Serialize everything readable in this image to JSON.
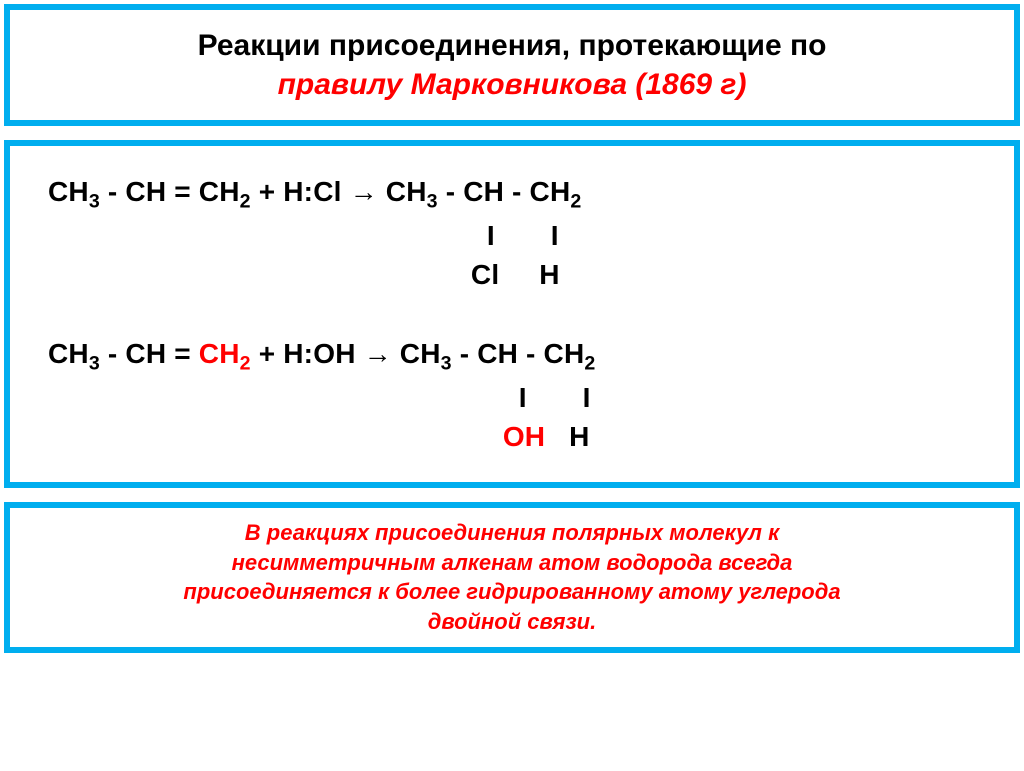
{
  "colors": {
    "frame_border": "#00aeef",
    "text_black": "#000000",
    "text_red": "#ff0000",
    "background": "#ffffff"
  },
  "fonts": {
    "header_size": 30,
    "equation_size": 28,
    "footer_size": 22
  },
  "header": {
    "line1": "Реакции присоединения, протекающие по",
    "line2": "правилу Марковникова (1869 г)"
  },
  "equations": {
    "eq1": {
      "lhs_prefix": "CH",
      "sub3": "3",
      "dash": " - CH = CH",
      "sub2": "2",
      "plus": " + ",
      "hcl": "H:Cl",
      "arrow": " → ",
      "rhs_prefix": "CH",
      "rhs_dash1": " - CH - CH",
      "bonds_pad": "                                                       ",
      "bond": "I       I",
      "subst_pad": "                                                     ",
      "subst": "Cl     H"
    },
    "eq2": {
      "lhs_prefix": "CH",
      "sub3": "3",
      "dash": " - CH = ",
      "ch": "CH",
      "sub2": "2",
      "plus": " + ",
      "hoh": "H:OH",
      "arrow": " → ",
      "rhs_prefix": "CH",
      "rhs_dash1": " - CH - CH",
      "bonds_pad": "                                                           ",
      "bond": "I       I",
      "subst_pad": "                                                         ",
      "oh": "OH",
      "h": "   H"
    }
  },
  "footer": {
    "line1": "В реакциях присоединения полярных молекул к",
    "line2": "несимметричным  алкенам атом водорода всегда",
    "line3": "присоединяется к более гидрированному атому углерода",
    "line4": "двойной связи."
  }
}
